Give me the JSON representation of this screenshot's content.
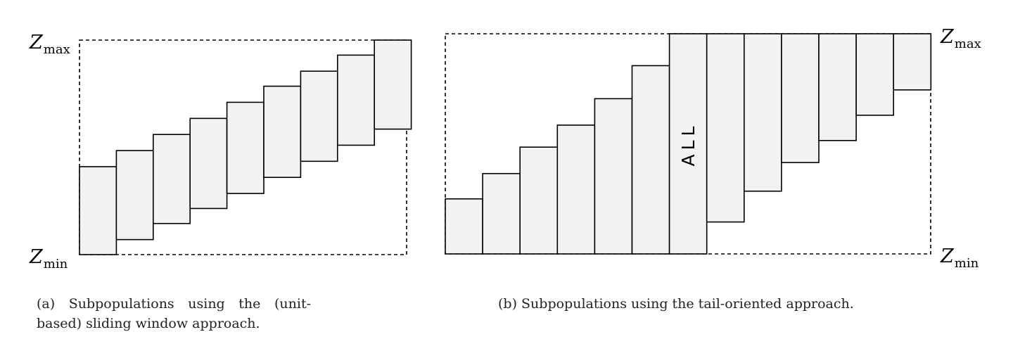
{
  "panel_a": {
    "z_max": "Z",
    "z_max_sub": "max",
    "z_min": "Z",
    "z_min_sub": "min",
    "caption_line1": "(a) Subpopulations using the (unit-",
    "caption_line2": "based) sliding window approach.",
    "windows": [
      {
        "low": 0.0,
        "high": 0.41
      },
      {
        "low": 0.07,
        "high": 0.485
      },
      {
        "low": 0.145,
        "high": 0.56
      },
      {
        "low": 0.215,
        "high": 0.635
      },
      {
        "low": 0.285,
        "high": 0.71
      },
      {
        "low": 0.36,
        "high": 0.785
      },
      {
        "low": 0.435,
        "high": 0.855
      },
      {
        "low": 0.51,
        "high": 0.93
      },
      {
        "low": 0.585,
        "high": 1.0
      }
    ]
  },
  "panel_b": {
    "z_max": "Z",
    "z_max_sub": "max",
    "z_min": "Z",
    "z_min_sub": "min",
    "all_label": "ALL",
    "caption": "(b) Subpopulations using the tail-oriented approach.",
    "lower_tail_tops": [
      0.25,
      0.365,
      0.485,
      0.585,
      0.705,
      0.855
    ],
    "upper_tail_bottoms": [
      0.145,
      0.285,
      0.415,
      0.515,
      0.63,
      0.745
    ]
  },
  "colors": {
    "bar_fill": "#f2f2f2",
    "stroke": "#000000"
  }
}
